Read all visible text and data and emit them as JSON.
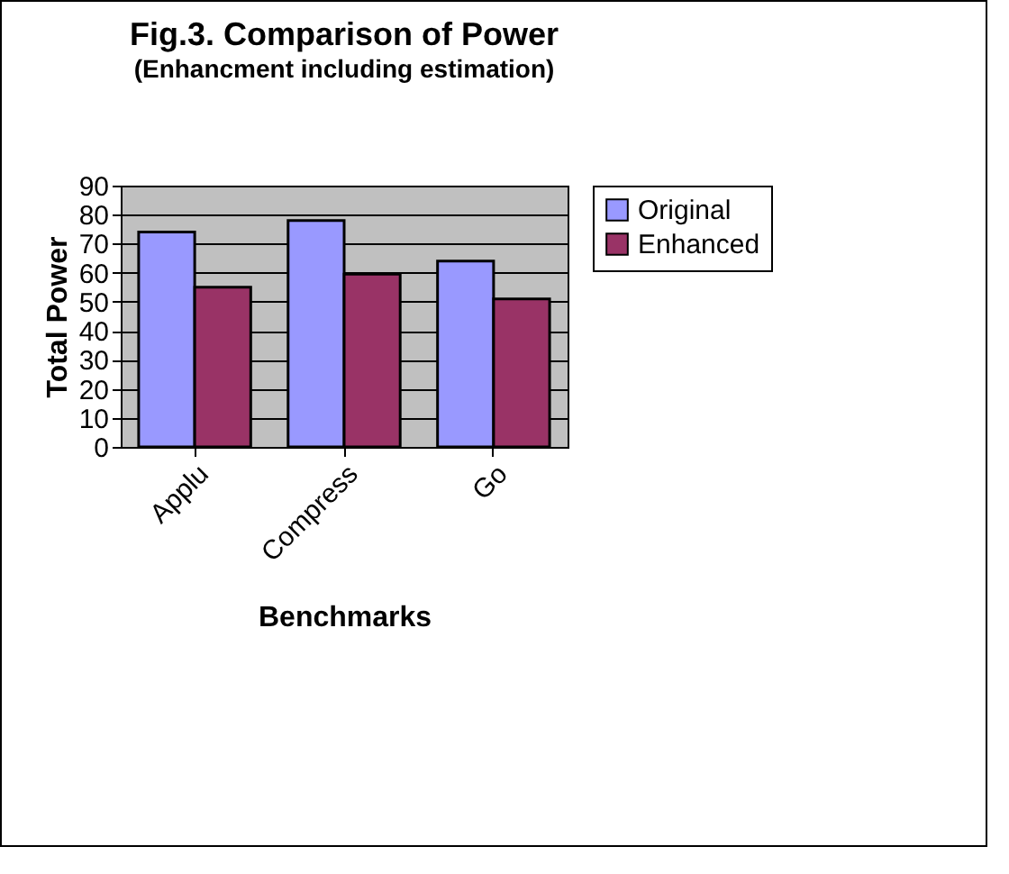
{
  "chart_data": {
    "type": "bar",
    "title": "Fig.3. Comparison of Power",
    "subtitle": "(Enhancment including estimation)",
    "xlabel": "Benchmarks",
    "ylabel": "Total Power",
    "categories": [
      "Applu",
      "Compress",
      "Go"
    ],
    "series": [
      {
        "name": "Original",
        "color": "#9999ff",
        "values": [
          74,
          78,
          64
        ]
      },
      {
        "name": "Enhanced",
        "color": "#993366",
        "values": [
          55,
          59.5,
          51
        ]
      }
    ],
    "ylim": [
      0,
      90
    ],
    "yticks": [
      0,
      10,
      20,
      30,
      40,
      50,
      60,
      70,
      80,
      90
    ],
    "grid": "y",
    "legend": "right"
  }
}
